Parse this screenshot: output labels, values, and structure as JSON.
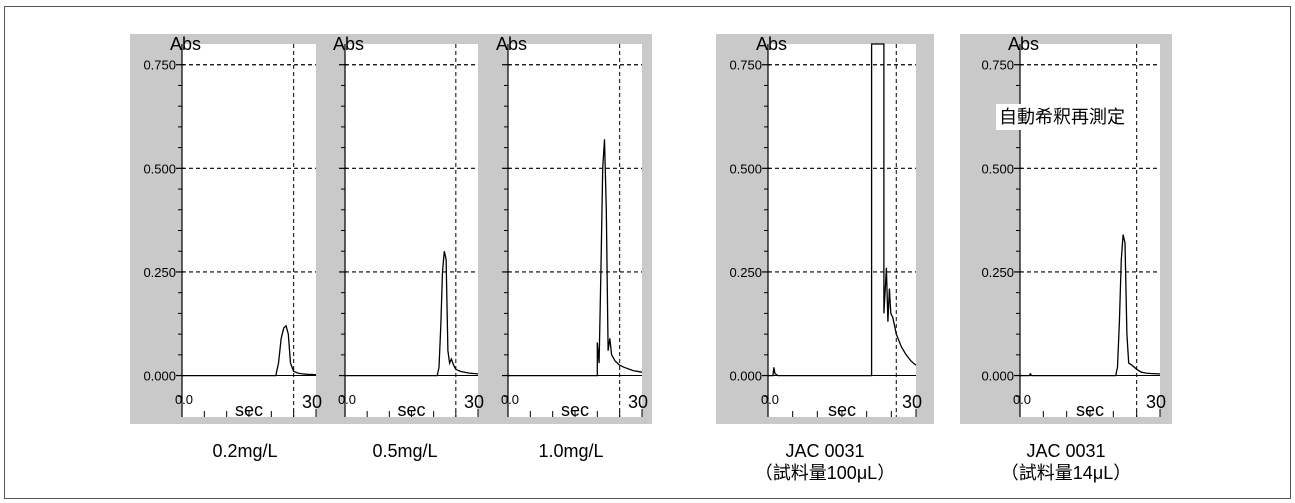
{
  "chart_data": [
    {
      "type": "line",
      "ylabel": "Abs",
      "xlabel": "sec",
      "xlim": [
        0,
        30
      ],
      "ylim": [
        -0.1,
        0.8
      ],
      "yticks": [
        "0.000",
        "0.250",
        "0.500",
        "0.750"
      ],
      "xticks": [
        "0.0",
        "30"
      ],
      "grid": "dashed at y = 0.250, 0.500, 0.750 and x = 25",
      "caption": [
        "0.2mg/L"
      ],
      "series": [
        {
          "x": [
            0,
            21,
            21.6,
            22.2,
            22.8,
            23.3,
            23.8,
            24.3,
            25,
            26,
            27,
            28,
            30
          ],
          "y": [
            0,
            0,
            0.03,
            0.09,
            0.115,
            0.12,
            0.1,
            0.03,
            0.01,
            0.006,
            0.004,
            0.003,
            0.002
          ]
        }
      ]
    },
    {
      "type": "line",
      "ylabel": "Abs",
      "xlabel": "sec",
      "xlim": [
        0,
        30
      ],
      "ylim": [
        -0.1,
        0.8
      ],
      "yticks": [],
      "xticks": [
        "0.0",
        "30"
      ],
      "grid": "dashed at y = 0.250, 0.500, 0.750 and x = 25",
      "caption": [
        "0.5mg/L"
      ],
      "series": [
        {
          "x": [
            0,
            20.8,
            21.2,
            21.6,
            22,
            22.4,
            22.8,
            23.2,
            23.6,
            24,
            24.5,
            25,
            26,
            28,
            30
          ],
          "y": [
            0,
            0,
            0.02,
            0.12,
            0.25,
            0.3,
            0.28,
            0.06,
            0.03,
            0.04,
            0.025,
            0.015,
            0.01,
            0.006,
            0.004
          ]
        }
      ]
    },
    {
      "type": "line",
      "ylabel": "Abs",
      "xlabel": "sec",
      "xlim": [
        0,
        30
      ],
      "ylim": [
        -0.1,
        0.8
      ],
      "yticks": [],
      "xticks": [
        "0.0",
        "30"
      ],
      "grid": "dashed at y = 0.250, 0.500, 0.750 and x = 25",
      "caption": [
        "1.0mg/L"
      ],
      "series": [
        {
          "x": [
            0,
            20,
            20,
            20.4,
            20.8,
            21.2,
            21.6,
            22,
            22.4,
            22.8,
            23.2,
            24,
            25,
            26,
            28,
            30
          ],
          "y": [
            0,
            0,
            0.08,
            0.03,
            0.25,
            0.5,
            0.57,
            0.4,
            0.06,
            0.09,
            0.05,
            0.035,
            0.025,
            0.02,
            0.012,
            0.008
          ]
        }
      ]
    },
    {
      "type": "line",
      "ylabel": "Abs",
      "xlabel": "sec",
      "xlim": [
        0,
        30
      ],
      "ylim": [
        -0.1,
        0.8
      ],
      "yticks": [
        "0.000",
        "0.250",
        "0.500",
        "0.750"
      ],
      "xticks": [
        "0.0",
        "30"
      ],
      "grid": "dashed at y = 0.250, 0.500, 0.750 and x = 26",
      "caption": [
        "JAC 0031",
        "（試料量100μL）"
      ],
      "series": [
        {
          "x": [
            0,
            1,
            1.2,
            1.4,
            2,
            21,
            21,
            23.5,
            23.5,
            24,
            24.3,
            24.6,
            24.9,
            25.3,
            26,
            27,
            28,
            29,
            30
          ],
          "y": [
            0,
            0,
            0.02,
            0.005,
            0,
            0,
            0.8,
            0.8,
            0.15,
            0.26,
            0.13,
            0.21,
            0.15,
            0.14,
            0.1,
            0.07,
            0.05,
            0.035,
            0.025
          ]
        }
      ]
    },
    {
      "type": "line",
      "ylabel": "Abs",
      "xlabel": "sec",
      "xlim": [
        0,
        30
      ],
      "ylim": [
        -0.1,
        0.8
      ],
      "yticks": [
        "0.000",
        "0.250",
        "0.500",
        "0.750"
      ],
      "xticks": [
        "0.0",
        "30"
      ],
      "grid": "dashed at y = 0.250, 0.500, 0.750 and x = 25",
      "annotation": "自動希釈再測定",
      "caption": [
        "JAC 0031",
        "（試料量14μL）"
      ],
      "series": [
        {
          "x": [
            0,
            2,
            2.2,
            2.5,
            20.5,
            20.9,
            21.3,
            21.7,
            22.1,
            22.5,
            22.9,
            23.3,
            24,
            25,
            26,
            27,
            28,
            30
          ],
          "y": [
            0,
            0,
            0.004,
            0,
            0,
            0.02,
            0.13,
            0.28,
            0.34,
            0.32,
            0.1,
            0.03,
            0.025,
            0.015,
            0.008,
            0.006,
            0.005,
            0.004
          ]
        }
      ]
    }
  ]
}
